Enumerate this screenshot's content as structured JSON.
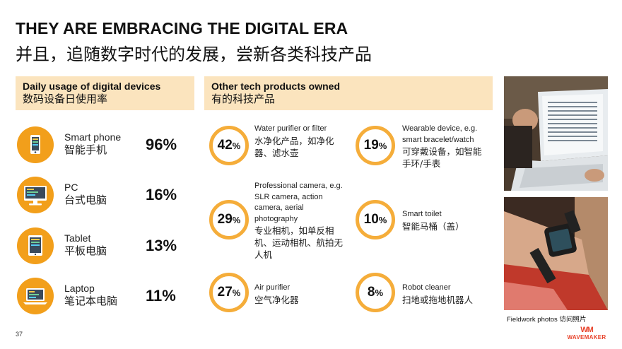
{
  "title": {
    "en": "THEY ARE EMBRACING THE DIGITAL ERA",
    "cn": "并且，追随数字时代的发展，尝新各类科技产品"
  },
  "daily": {
    "header_en": "Daily usage of digital devices",
    "header_cn": "数码设备日使用率",
    "devices": [
      {
        "en": "Smart phone",
        "cn": "智能手机",
        "pct": "96%",
        "icon": "smartphone-icon"
      },
      {
        "en": "PC",
        "cn": "台式电脑",
        "pct": "16%",
        "icon": "desktop-pc-icon"
      },
      {
        "en": "Tablet",
        "cn": "平板电脑",
        "pct": "13%",
        "icon": "tablet-icon"
      },
      {
        "en": "Laptop",
        "cn": "笔记本电脑",
        "pct": "11%",
        "icon": "laptop-icon"
      }
    ]
  },
  "other": {
    "header_en": "Other tech products owned",
    "header_cn": "有的科技产品",
    "products": [
      {
        "num": "42",
        "unit": "%",
        "en": "Water purifier or filter",
        "cn": "水净化产品，如净化器、滤水壶"
      },
      {
        "num": "19",
        "unit": "%",
        "en": "Wearable device, e.g. smart bracelet/watch",
        "cn": "可穿戴设备，如智能手环/手表"
      },
      {
        "num": "29",
        "unit": "%",
        "en": "Professional camera, e.g. SLR camera, action camera, aerial photography",
        "cn": "专业相机，如单反相机、运动相机、航拍无人机"
      },
      {
        "num": "10",
        "unit": "%",
        "en": "Smart toilet",
        "cn": "智能马桶（盖）"
      },
      {
        "num": "27",
        "unit": "%",
        "en": "Air purifier",
        "cn": "空气净化器"
      },
      {
        "num": "8",
        "unit": "%",
        "en": "Robot cleaner",
        "cn": "扫地或拖地机器人"
      }
    ]
  },
  "photos": {
    "caption_en": "Fieldwork photos",
    "caption_cn": "访问照片"
  },
  "footer": {
    "page_number": "37",
    "brand_mark": "WM",
    "brand_name": "WAVEMAKER"
  },
  "colors": {
    "accent_orange": "#f29f1b",
    "ring_orange": "#f5ad3a",
    "header_bg": "#fbe4be",
    "brand_red": "#e8442c"
  }
}
